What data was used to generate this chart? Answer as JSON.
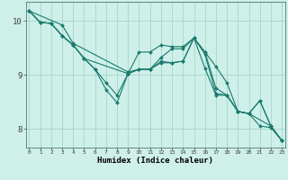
{
  "xlabel": "Humidex (Indice chaleur)",
  "bg_color": "#cef0e8",
  "grid_color": "#a0cfc8",
  "line_color": "#1a7a6e",
  "xlim": [
    -0.3,
    23.3
  ],
  "ylim": [
    7.65,
    10.35
  ],
  "yticks": [
    8,
    9,
    10
  ],
  "xticks": [
    0,
    1,
    2,
    3,
    4,
    5,
    6,
    7,
    8,
    9,
    10,
    11,
    12,
    13,
    14,
    15,
    16,
    17,
    18,
    19,
    20,
    21,
    22,
    23
  ],
  "lines": [
    {
      "x": [
        0,
        1,
        2,
        3,
        4,
        5,
        6,
        7,
        8,
        9,
        10,
        11,
        12,
        13,
        14,
        15,
        16,
        17,
        18,
        19,
        20,
        21,
        22,
        23
      ],
      "y": [
        10.18,
        9.97,
        9.95,
        9.72,
        9.55,
        9.3,
        9.1,
        8.85,
        8.62,
        9.02,
        9.42,
        9.42,
        9.55,
        9.52,
        9.52,
        9.68,
        9.42,
        9.15,
        8.85,
        8.32,
        8.28,
        8.05,
        8.02,
        7.78
      ]
    },
    {
      "x": [
        0,
        1,
        2,
        3,
        4,
        5,
        9,
        10,
        11,
        12,
        13,
        14,
        15,
        16,
        17,
        18,
        19,
        20,
        21,
        22,
        23
      ],
      "y": [
        10.18,
        9.97,
        9.95,
        9.72,
        9.55,
        9.3,
        9.02,
        9.1,
        9.1,
        9.25,
        9.22,
        9.25,
        9.68,
        9.42,
        8.75,
        8.62,
        8.32,
        8.28,
        8.52,
        8.05,
        7.78
      ]
    },
    {
      "x": [
        0,
        3,
        4,
        9,
        10,
        11,
        12,
        13,
        14,
        15,
        16,
        17,
        18,
        19,
        20,
        22,
        23
      ],
      "y": [
        10.18,
        9.92,
        9.58,
        9.05,
        9.1,
        9.1,
        9.32,
        9.48,
        9.48,
        9.68,
        9.38,
        8.65,
        8.62,
        8.32,
        8.28,
        8.05,
        7.78
      ]
    },
    {
      "x": [
        0,
        1,
        2,
        3,
        4,
        5,
        6,
        7,
        8,
        9,
        10,
        11,
        12,
        13,
        14,
        15,
        16,
        17,
        18,
        19,
        20,
        21,
        22,
        23
      ],
      "y": [
        10.18,
        9.97,
        9.95,
        9.72,
        9.55,
        9.3,
        9.1,
        8.72,
        8.48,
        9.02,
        9.1,
        9.1,
        9.22,
        9.22,
        9.25,
        9.68,
        9.12,
        8.62,
        8.62,
        8.32,
        8.28,
        8.52,
        8.05,
        7.78
      ]
    }
  ]
}
